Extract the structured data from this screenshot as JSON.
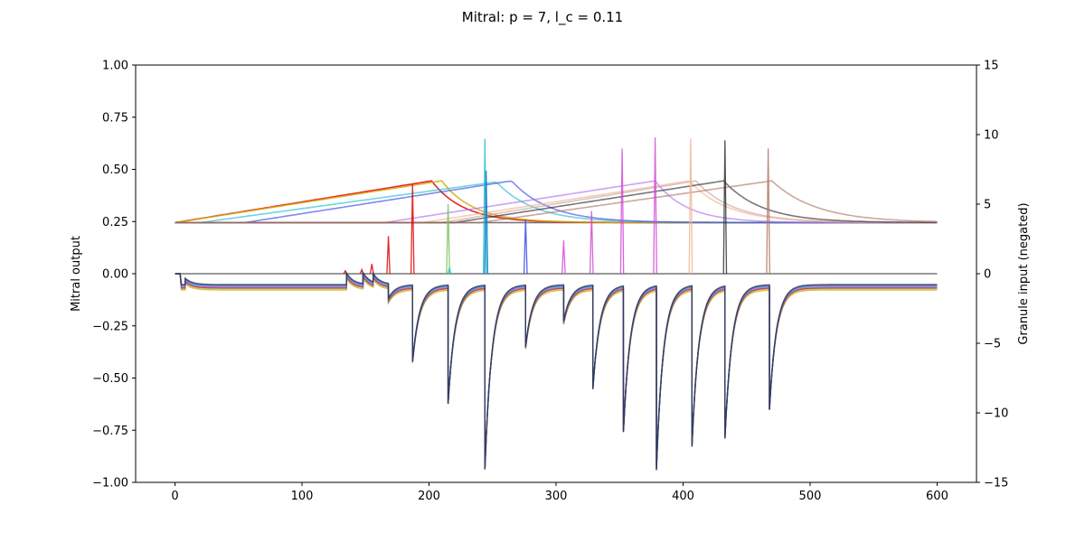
{
  "chart_data": {
    "type": "line",
    "title": "Mitral: p = 7, l_c = 0.11",
    "xlabel": "",
    "ylabel": "Mitral output",
    "y2label": "Granule input (negated)",
    "xlim": [
      -31,
      631
    ],
    "ylim": [
      -1.0,
      1.0
    ],
    "y2lim": [
      -15,
      15
    ],
    "xticks": [
      "0",
      "100",
      "200",
      "300",
      "400",
      "500",
      "600"
    ],
    "yticks": [
      "−1.00",
      "−0.75",
      "−0.50",
      "−0.25",
      "0.00",
      "0.25",
      "0.50",
      "0.75",
      "1.00"
    ],
    "y2ticks": [
      "−15",
      "−10",
      "−5",
      "0",
      "5",
      "10",
      "15"
    ],
    "grid": false,
    "legend": "none",
    "colors": [
      "#e00000",
      "#d4a90f",
      "#79c25a",
      "#22bfcf",
      "#0b75c8",
      "#3b49e8",
      "#b070f0",
      "#d24ad6",
      "#f0b490",
      "#303030",
      "#b07868",
      "#666666"
    ],
    "granule_base_y2": -1.0,
    "mitral_baseline": -0.06,
    "odor_ramps": [
      {
        "color": "#e00000",
        "start": 0,
        "peak": 202,
        "peak_y": 0.445,
        "tau": 25
      },
      {
        "color": "#d4a90f",
        "start": 0,
        "peak": 210,
        "peak_y": 0.445,
        "tau": 25
      },
      {
        "color": "#22bfcf",
        "start": 20,
        "peak": 253,
        "peak_y": 0.44,
        "tau": 30
      },
      {
        "color": "#3b49e8",
        "start": 55,
        "peak": 265,
        "peak_y": 0.445,
        "tau": 30
      },
      {
        "color": "#c9a0a0",
        "start": 210,
        "peak": 410,
        "peak_y": 0.445,
        "tau": 30
      },
      {
        "color": "#b070f0",
        "start": 165,
        "peak": 378,
        "peak_y": 0.445,
        "tau": 25
      },
      {
        "color": "#f0b490",
        "start": 195,
        "peak": 405,
        "peak_y": 0.445,
        "tau": 30
      },
      {
        "color": "#303030",
        "start": 220,
        "peak": 432,
        "peak_y": 0.445,
        "tau": 30
      },
      {
        "color": "#b07868",
        "start": 240,
        "peak": 470,
        "peak_y": 0.445,
        "tau": 35
      }
    ],
    "mitral_spikes": [
      {
        "x": 134,
        "y2": 0.2,
        "color": "#e00000"
      },
      {
        "x": 147,
        "y2": 0.3,
        "color": "#e00000"
      },
      {
        "x": 155,
        "y2": 0.7,
        "color": "#e00000"
      },
      {
        "x": 168,
        "y2": 2.7,
        "color": "#e00000"
      },
      {
        "x": 187,
        "y2": 6.4,
        "color": "#e00000"
      },
      {
        "x": 215,
        "y2": 5.0,
        "color": "#79c25a"
      },
      {
        "x": 216,
        "y2": 0.4,
        "color": "#22bfcf"
      },
      {
        "x": 244,
        "y2": 9.7,
        "color": "#22bfcf"
      },
      {
        "x": 245,
        "y2": 7.4,
        "color": "#0b75c8"
      },
      {
        "x": 276,
        "y2": 3.9,
        "color": "#3b49e8"
      },
      {
        "x": 306,
        "y2": 2.4,
        "color": "#d24ad6"
      },
      {
        "x": 328,
        "y2": 4.5,
        "color": "#d24ad6"
      },
      {
        "x": 352,
        "y2": 9.0,
        "color": "#d24ad6"
      },
      {
        "x": 378,
        "y2": 9.8,
        "color": "#d24ad6"
      },
      {
        "x": 406,
        "y2": 9.7,
        "color": "#f0b490"
      },
      {
        "x": 433,
        "y2": 9.6,
        "color": "#303030"
      },
      {
        "x": 467,
        "y2": 9.0,
        "color": "#b07868"
      }
    ],
    "inhibition_events": [
      {
        "x": 8,
        "depth": -0.03
      },
      {
        "x": 135,
        "depth": -0.005
      },
      {
        "x": 148,
        "depth": -0.008
      },
      {
        "x": 156,
        "depth": -0.02
      },
      {
        "x": 168,
        "depth": -0.13
      },
      {
        "x": 187,
        "depth": -0.42
      },
      {
        "x": 215,
        "depth": -0.62
      },
      {
        "x": 244,
        "depth": -0.93
      },
      {
        "x": 276,
        "depth": -0.35
      },
      {
        "x": 306,
        "depth": -0.23
      },
      {
        "x": 329,
        "depth": -0.55
      },
      {
        "x": 353,
        "depth": -0.75
      },
      {
        "x": 379,
        "depth": -0.93
      },
      {
        "x": 407,
        "depth": -0.82
      },
      {
        "x": 433,
        "depth": -0.78
      },
      {
        "x": 468,
        "depth": -0.65
      }
    ],
    "inhibition_traces": [
      {
        "color": "#d4a90f",
        "offset": -0.018
      },
      {
        "color": "#79c25a",
        "offset": -0.012
      },
      {
        "color": "#e00000",
        "offset": -0.008
      },
      {
        "color": "#d24ad6",
        "offset": -0.004
      },
      {
        "color": "#22bfcf",
        "offset": 0.0
      },
      {
        "color": "#3b49e8",
        "offset": 0.004
      },
      {
        "color": "#303030",
        "offset": 0.008
      }
    ]
  }
}
